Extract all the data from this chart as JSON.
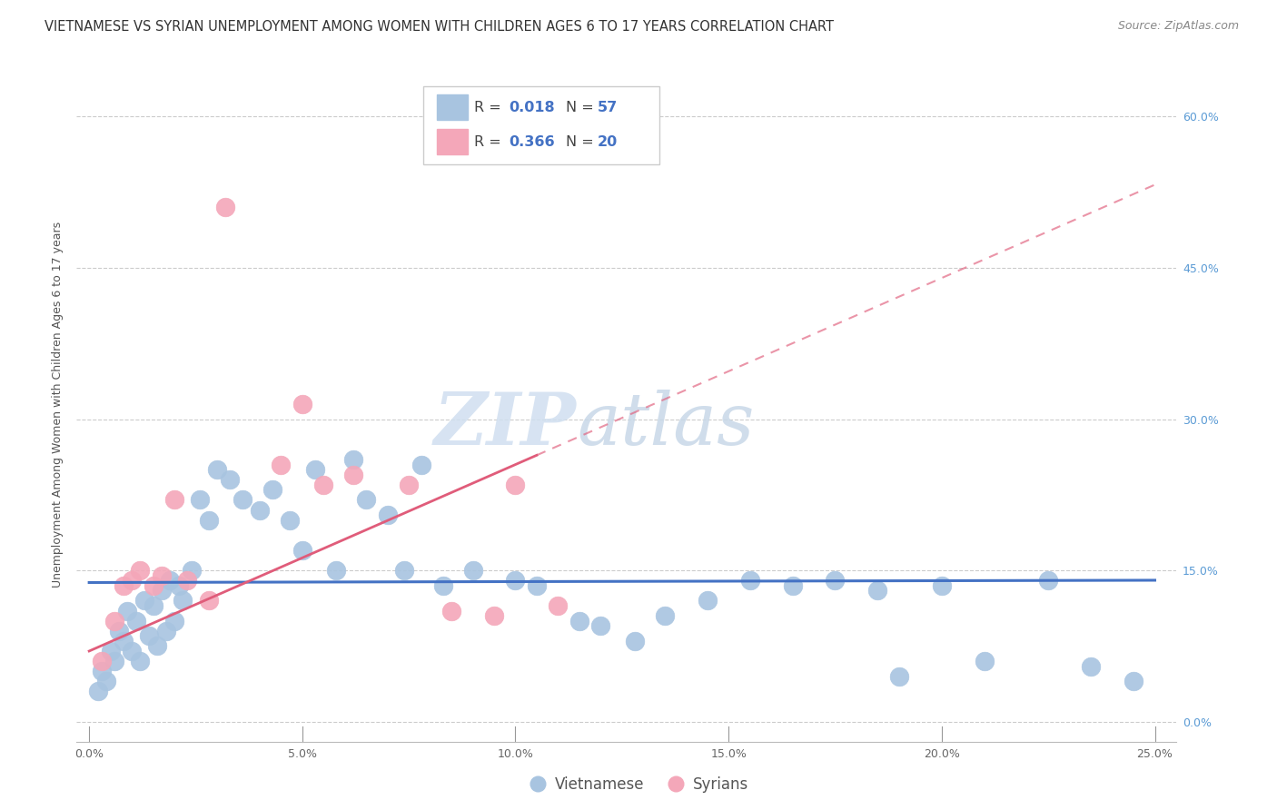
{
  "title": "VIETNAMESE VS SYRIAN UNEMPLOYMENT AMONG WOMEN WITH CHILDREN AGES 6 TO 17 YEARS CORRELATION CHART",
  "source": "Source: ZipAtlas.com",
  "ylabel": "Unemployment Among Women with Children Ages 6 to 17 years",
  "xlabel_ticks": [
    "0.0%",
    "5.0%",
    "10.0%",
    "15.0%",
    "20.0%",
    "25.0%"
  ],
  "xlabel_vals": [
    0.0,
    5.0,
    10.0,
    15.0,
    20.0,
    25.0
  ],
  "ylabel_ticks": [
    "0.0%",
    "15.0%",
    "30.0%",
    "45.0%",
    "60.0%"
  ],
  "ylabel_vals": [
    0.0,
    15.0,
    30.0,
    45.0,
    60.0
  ],
  "xlim": [
    -0.3,
    25.5
  ],
  "ylim": [
    -2.0,
    65.0
  ],
  "viet_R": "0.018",
  "viet_N": "57",
  "syria_R": "0.366",
  "syria_N": "20",
  "viet_color": "#a8c4e0",
  "syria_color": "#f4a7b9",
  "viet_line_color": "#4472c4",
  "syria_line_color": "#e05c7a",
  "legend_bottom": [
    "Vietnamese",
    "Syrians"
  ],
  "watermark_zip": "ZIP",
  "watermark_atlas": "atlas",
  "viet_x": [
    0.2,
    0.3,
    0.4,
    0.5,
    0.6,
    0.7,
    0.8,
    0.9,
    1.0,
    1.1,
    1.2,
    1.3,
    1.4,
    1.5,
    1.6,
    1.7,
    1.8,
    1.9,
    2.0,
    2.1,
    2.2,
    2.4,
    2.6,
    2.8,
    3.0,
    3.3,
    3.6,
    4.0,
    4.3,
    4.7,
    5.0,
    5.3,
    5.8,
    6.2,
    6.5,
    7.0,
    7.4,
    7.8,
    8.3,
    9.0,
    10.0,
    10.5,
    11.5,
    12.0,
    12.8,
    13.5,
    14.5,
    15.5,
    16.5,
    17.5,
    18.5,
    19.0,
    20.0,
    21.0,
    22.5,
    23.5,
    24.5
  ],
  "viet_y": [
    3.0,
    5.0,
    4.0,
    7.0,
    6.0,
    9.0,
    8.0,
    11.0,
    7.0,
    10.0,
    6.0,
    12.0,
    8.5,
    11.5,
    7.5,
    13.0,
    9.0,
    14.0,
    10.0,
    13.5,
    12.0,
    15.0,
    22.0,
    20.0,
    25.0,
    24.0,
    22.0,
    21.0,
    23.0,
    20.0,
    17.0,
    25.0,
    15.0,
    26.0,
    22.0,
    20.5,
    15.0,
    25.5,
    13.5,
    15.0,
    14.0,
    13.5,
    10.0,
    9.5,
    8.0,
    10.5,
    12.0,
    14.0,
    13.5,
    14.0,
    13.0,
    4.5,
    13.5,
    6.0,
    14.0,
    5.5,
    4.0
  ],
  "syria_x": [
    0.3,
    0.6,
    0.8,
    1.0,
    1.2,
    1.5,
    1.7,
    2.0,
    2.3,
    2.8,
    3.2,
    4.5,
    5.0,
    5.5,
    6.2,
    7.5,
    8.5,
    9.5,
    10.0,
    11.0
  ],
  "syria_y": [
    6.0,
    10.0,
    13.5,
    14.0,
    15.0,
    13.5,
    14.5,
    22.0,
    14.0,
    12.0,
    51.0,
    25.5,
    31.5,
    23.5,
    24.5,
    23.5,
    11.0,
    10.5,
    23.5,
    11.5
  ],
  "title_fontsize": 10.5,
  "source_fontsize": 9,
  "axis_label_fontsize": 9,
  "tick_fontsize": 9,
  "legend_fontsize": 12
}
